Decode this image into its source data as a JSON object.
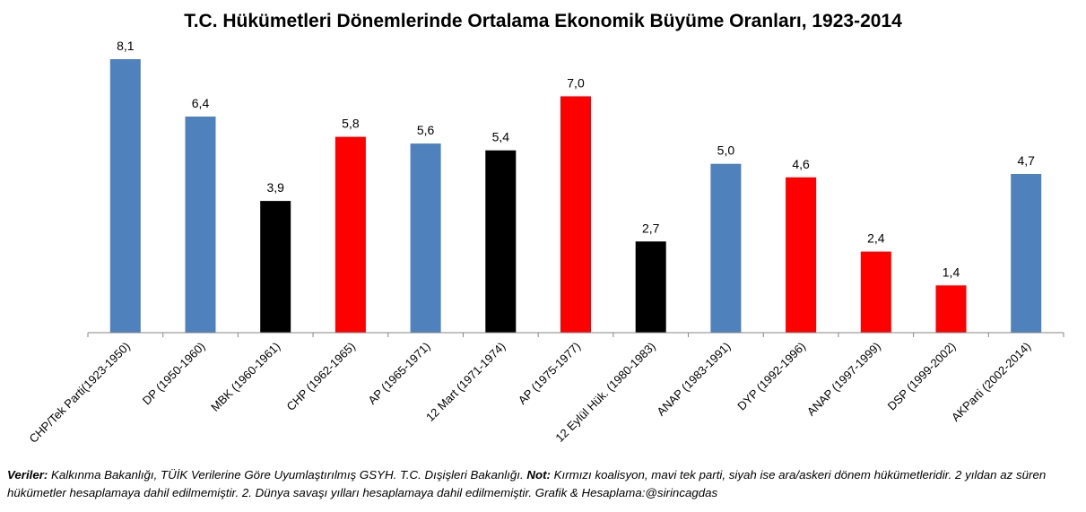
{
  "chart_data": {
    "type": "bar",
    "title": "T.C. Hükümetleri Dönemlerinde Ortalama Ekonomik Büyüme Oranları, 1923-2014",
    "xlabel": "",
    "ylabel": "",
    "ylim": [
      0,
      8.1
    ],
    "grid": false,
    "legend": "none",
    "categories": [
      "CHP/Tek Parti(1923-1950)",
      "DP (1950-1960)",
      "MBK (1960-1961)",
      "CHP (1962-1965)",
      "AP (1965-1971)",
      "12 Mart (1971-1974)",
      "AP (1975-1977)",
      "12 Eylül Hük. (1980-1983)",
      "ANAP (1983-1991)",
      "DYP (1992-1996)",
      "ANAP (1997-1999)",
      "DSP (1999-2002)",
      "AKParti (2002-2014)"
    ],
    "values": [
      8.1,
      6.4,
      3.9,
      5.8,
      5.6,
      5.4,
      7.0,
      2.7,
      5.0,
      4.6,
      2.4,
      1.4,
      4.7
    ],
    "value_labels": [
      "8,1",
      "6,4",
      "3,9",
      "5,8",
      "5,6",
      "5,4",
      "7,0",
      "2,7",
      "5,0",
      "4,6",
      "2,4",
      "1,4",
      "4,7"
    ],
    "bar_colors": [
      "#4f81bd",
      "#4f81bd",
      "#000000",
      "#ff0000",
      "#4f81bd",
      "#000000",
      "#ff0000",
      "#000000",
      "#4f81bd",
      "#ff0000",
      "#ff0000",
      "#ff0000",
      "#4f81bd"
    ]
  },
  "footnote": {
    "veriler_label": "Veriler:",
    "veriler_text": " Kalkınma Bakanlığı, TÜİK Verilerine Göre Uyumlaştırılmış GSYH. T.C. Dışişleri Bakanlığı. ",
    "not_label": "Not:",
    "not_text": " Kırmızı koalisyon, mavi tek parti, siyah ise ara/askeri dönem hükümetleridir. 2 yıldan az süren hükümetler hesaplamaya dahil edilmemiştir. 2. Dünya savaşı yılları hesaplamaya dahil edilmemiştir. Grafik & Hesaplama:@sirincagdas"
  }
}
